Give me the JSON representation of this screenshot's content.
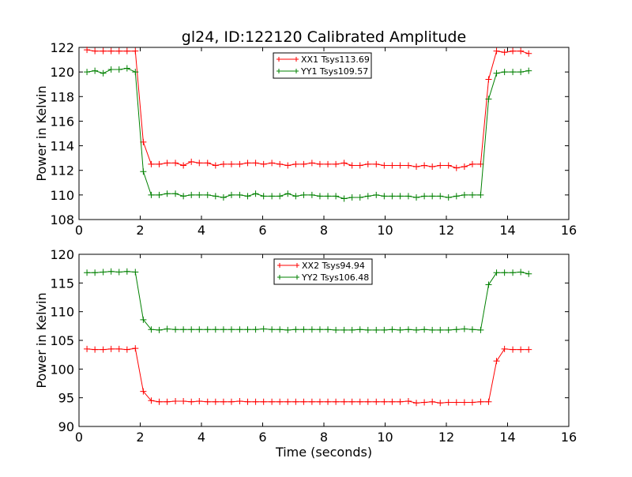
{
  "figure": {
    "title": "gl24, ID:122120 Calibrated Amplitude",
    "colors": {
      "red": "#ff0000",
      "green": "#008000",
      "axis": "#000000",
      "background": "#ffffff"
    }
  },
  "chart_data": [
    {
      "type": "line",
      "title": "gl24, ID:122120 Calibrated Amplitude",
      "xlabel": "",
      "ylabel": "Power in Kelvin",
      "xlim": [
        0,
        16
      ],
      "ylim": [
        108,
        122
      ],
      "xticks": [
        "0",
        "2",
        "4",
        "6",
        "8",
        "10",
        "12",
        "14",
        "16"
      ],
      "yticks": [
        "108",
        "110",
        "112",
        "114",
        "116",
        "118",
        "120",
        "122"
      ],
      "grid": false,
      "legend_position": "top-center",
      "marker": "plus",
      "x": [
        0.26,
        0.52,
        0.79,
        1.05,
        1.31,
        1.57,
        1.84,
        2.1,
        2.36,
        2.62,
        2.88,
        3.15,
        3.41,
        3.67,
        3.93,
        4.2,
        4.46,
        4.72,
        4.98,
        5.25,
        5.51,
        5.77,
        6.03,
        6.3,
        6.56,
        6.82,
        7.08,
        7.34,
        7.61,
        7.87,
        8.13,
        8.39,
        8.66,
        8.92,
        9.18,
        9.44,
        9.71,
        9.97,
        10.23,
        10.49,
        10.76,
        11.02,
        11.28,
        11.54,
        11.8,
        12.07,
        12.33,
        12.59,
        12.85,
        13.12,
        13.38,
        13.64,
        13.9,
        14.17,
        14.43,
        14.69
      ],
      "series": [
        {
          "name": "XX1 Tsys113.69",
          "color": "#ff0000",
          "values": [
            121.8,
            121.7,
            121.7,
            121.7,
            121.7,
            121.7,
            121.7,
            114.3,
            112.5,
            112.5,
            112.6,
            112.6,
            112.4,
            112.7,
            112.6,
            112.6,
            112.4,
            112.5,
            112.5,
            112.5,
            112.6,
            112.6,
            112.5,
            112.6,
            112.5,
            112.4,
            112.5,
            112.5,
            112.6,
            112.5,
            112.5,
            112.5,
            112.6,
            112.4,
            112.4,
            112.5,
            112.5,
            112.4,
            112.4,
            112.4,
            112.4,
            112.3,
            112.4,
            112.3,
            112.4,
            112.4,
            112.2,
            112.3,
            112.5,
            112.5,
            119.4,
            121.7,
            121.6,
            121.7,
            121.7,
            121.5
          ]
        },
        {
          "name": "YY1 Tsys109.57",
          "color": "#008000",
          "values": [
            120.0,
            120.1,
            119.9,
            120.2,
            120.2,
            120.3,
            120.0,
            111.9,
            110.0,
            110.0,
            110.1,
            110.1,
            109.9,
            110.0,
            110.0,
            110.0,
            109.9,
            109.8,
            110.0,
            110.0,
            109.9,
            110.1,
            109.9,
            109.9,
            109.9,
            110.1,
            109.9,
            110.0,
            110.0,
            109.9,
            109.9,
            109.9,
            109.7,
            109.8,
            109.8,
            109.9,
            110.0,
            109.9,
            109.9,
            109.9,
            109.9,
            109.8,
            109.9,
            109.9,
            109.9,
            109.8,
            109.9,
            110.0,
            110.0,
            110.0,
            117.8,
            119.9,
            120.0,
            120.0,
            120.0,
            120.1
          ]
        }
      ]
    },
    {
      "type": "line",
      "title": "",
      "xlabel": "Time (seconds)",
      "ylabel": "Power in Kelvin",
      "xlim": [
        0,
        16
      ],
      "ylim": [
        90,
        120
      ],
      "xticks": [
        "0",
        "2",
        "4",
        "6",
        "8",
        "10",
        "12",
        "14",
        "16"
      ],
      "yticks": [
        "90",
        "95",
        "100",
        "105",
        "110",
        "115",
        "120"
      ],
      "grid": false,
      "legend_position": "top-center",
      "marker": "plus",
      "x": [
        0.26,
        0.52,
        0.79,
        1.05,
        1.31,
        1.57,
        1.84,
        2.1,
        2.36,
        2.62,
        2.88,
        3.15,
        3.41,
        3.67,
        3.93,
        4.2,
        4.46,
        4.72,
        4.98,
        5.25,
        5.51,
        5.77,
        6.03,
        6.3,
        6.56,
        6.82,
        7.08,
        7.34,
        7.61,
        7.87,
        8.13,
        8.39,
        8.66,
        8.92,
        9.18,
        9.44,
        9.71,
        9.97,
        10.23,
        10.49,
        10.76,
        11.02,
        11.28,
        11.54,
        11.8,
        12.07,
        12.33,
        12.59,
        12.85,
        13.12,
        13.38,
        13.64,
        13.9,
        14.17,
        14.43,
        14.69
      ],
      "series": [
        {
          "name": "XX2 Tsys94.94",
          "color": "#ff0000",
          "values": [
            103.5,
            103.4,
            103.4,
            103.5,
            103.5,
            103.4,
            103.6,
            96.1,
            94.5,
            94.3,
            94.3,
            94.4,
            94.4,
            94.3,
            94.4,
            94.3,
            94.3,
            94.3,
            94.3,
            94.4,
            94.3,
            94.3,
            94.3,
            94.3,
            94.3,
            94.3,
            94.3,
            94.3,
            94.3,
            94.3,
            94.3,
            94.3,
            94.3,
            94.3,
            94.3,
            94.3,
            94.3,
            94.3,
            94.3,
            94.3,
            94.4,
            94.1,
            94.2,
            94.3,
            94.1,
            94.2,
            94.2,
            94.2,
            94.2,
            94.3,
            94.3,
            101.4,
            103.5,
            103.4,
            103.4,
            103.4
          ]
        },
        {
          "name": "YY2 Tsys106.48",
          "color": "#008000",
          "values": [
            116.8,
            116.8,
            116.9,
            117.0,
            116.9,
            117.0,
            116.9,
            108.6,
            106.9,
            106.8,
            107.0,
            106.9,
            106.9,
            106.9,
            106.9,
            106.9,
            106.9,
            106.9,
            106.9,
            106.9,
            106.9,
            106.9,
            107.0,
            106.9,
            106.9,
            106.8,
            106.9,
            106.9,
            106.9,
            106.9,
            106.9,
            106.8,
            106.8,
            106.8,
            106.9,
            106.8,
            106.8,
            106.8,
            106.9,
            106.8,
            106.9,
            106.8,
            106.9,
            106.8,
            106.8,
            106.8,
            106.9,
            107.0,
            106.9,
            106.8,
            114.7,
            116.8,
            116.8,
            116.8,
            116.9,
            116.6
          ]
        }
      ]
    }
  ]
}
